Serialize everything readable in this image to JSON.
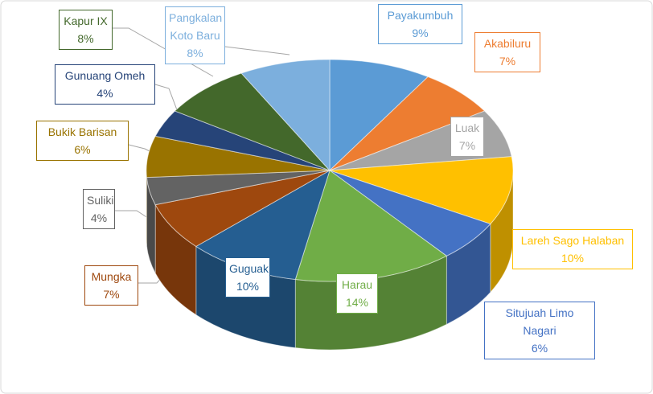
{
  "chart_data": {
    "type": "pie",
    "categories": [
      "Payakumbuh",
      "Akabiluru",
      "Luak",
      "Lareh Sago Halaban",
      "Situjuah Limo Nagari",
      "Harau",
      "Guguak",
      "Mungka",
      "Suliki",
      "Bukik Barisan",
      "Gunuang Omeh",
      "Kapur IX",
      "Pangkalan Koto Baru"
    ],
    "values": [
      9,
      7,
      7,
      10,
      6,
      14,
      10,
      7,
      4,
      6,
      4,
      8,
      8
    ],
    "value_labels": [
      "9%",
      "7%",
      "7%",
      "10%",
      "6%",
      "14%",
      "10%",
      "7%",
      "4%",
      "6%",
      "4%",
      "8%",
      "8%"
    ],
    "colors": [
      "#5b9bd5",
      "#ed7d31",
      "#a5a5a5",
      "#ffc000",
      "#4472c4",
      "#70ad47",
      "#255e91",
      "#9e480e",
      "#636363",
      "#997300",
      "#264478",
      "#43682b",
      "#7cafdd"
    ]
  }
}
